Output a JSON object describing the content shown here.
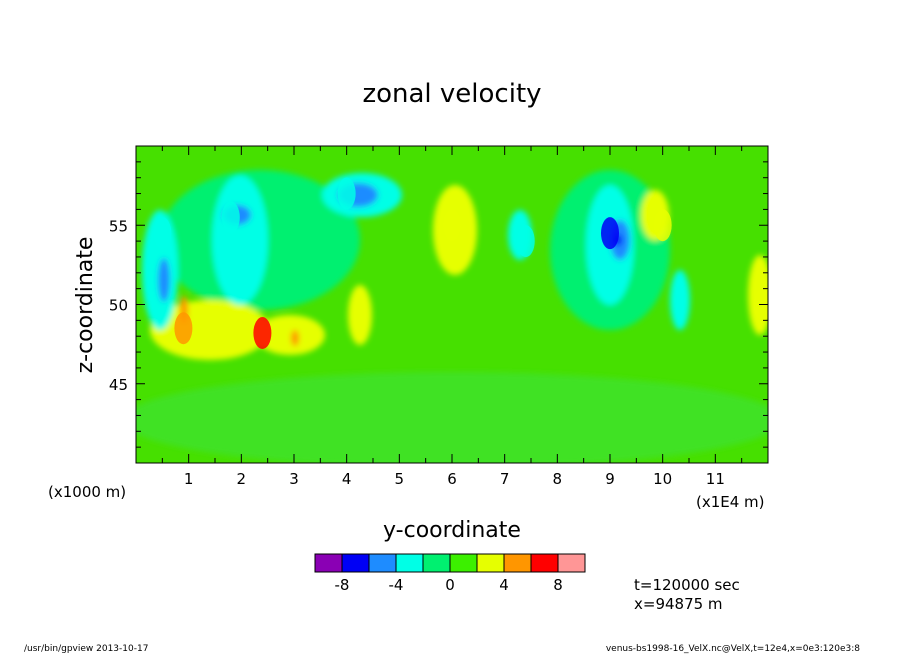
{
  "chart_data": {
    "type": "heatmap",
    "title": "zonal velocity",
    "xlabel": "y-coordinate",
    "ylabel": "z-coordinate",
    "x_scale_label": "(x1E4 m)",
    "y_scale_label": "(x1000 m)",
    "xlim": [
      0,
      12
    ],
    "ylim": [
      40,
      60
    ],
    "x_ticks": [
      "1",
      "2",
      "3",
      "4",
      "5",
      "6",
      "7",
      "8",
      "9",
      "10",
      "11"
    ],
    "y_ticks": [
      "45",
      "50",
      "55"
    ],
    "colorbar": {
      "levels": [
        -10,
        -8,
        -6,
        -4,
        -2,
        0,
        2,
        4,
        6,
        8,
        10
      ],
      "colors": [
        "#8a00b4",
        "#0000f5",
        "#1e8cff",
        "#00ffe6",
        "#00f070",
        "#3cf000",
        "#e6ff00",
        "#ff9600",
        "#ff0000",
        "#ff9696"
      ],
      "tick_labels": [
        "-8",
        "-4",
        "0",
        "4",
        "8"
      ]
    },
    "background_level_color": "#46e000",
    "features": [
      {
        "y": 0.5,
        "z": 54.5,
        "value": -3
      },
      {
        "y": 0.9,
        "z": 48.5,
        "value": 5
      },
      {
        "y": 1.8,
        "z": 55.5,
        "value": -4
      },
      {
        "y": 2.4,
        "z": 48.2,
        "value": 6
      },
      {
        "y": 3.0,
        "z": 53.0,
        "value": -2
      },
      {
        "y": 4.0,
        "z": 57.0,
        "value": -4
      },
      {
        "y": 6.0,
        "z": 55.0,
        "value": 3
      },
      {
        "y": 7.4,
        "z": 54.0,
        "value": -3
      },
      {
        "y": 9.0,
        "z": 54.5,
        "value": -7
      },
      {
        "y": 10.0,
        "z": 55.0,
        "value": 3
      },
      {
        "y": 11.9,
        "z": 50.0,
        "value": 3
      }
    ]
  },
  "annotations": {
    "time": "t=120000 sec",
    "position": "x=94875 m"
  },
  "footer": {
    "left": "/usr/bin/gpview  2013-10-17",
    "right": "venus-bs1998-16_VelX.nc@VelX,t=12e4,x=0e3:120e3:8"
  }
}
